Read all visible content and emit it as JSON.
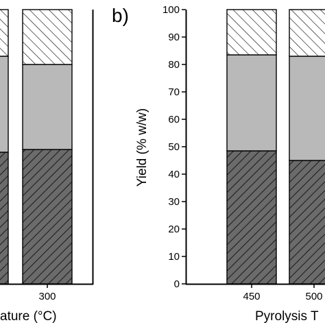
{
  "chart_data": [
    {
      "panel": "a",
      "type": "bar",
      "stacked": true,
      "title": "",
      "xlabel": "Torrefaction Temperature (°C)",
      "xlabel_visible_text": "ature (°C)",
      "ylabel": "",
      "ylim": [
        0,
        100
      ],
      "categories": [
        "",
        "300"
      ],
      "series": [
        {
          "values": [
            48,
            49
          ],
          "pattern": "dense-hatch",
          "fill": "#6b6b6b"
        },
        {
          "values": [
            35,
            31
          ],
          "pattern": "solid",
          "fill": "#b9b9b9"
        },
        {
          "values": [
            17,
            20
          ],
          "pattern": "sparse-hatch",
          "fill": "#ffffff"
        }
      ]
    },
    {
      "panel": "b",
      "type": "bar",
      "stacked": true,
      "title": "",
      "panel_label": "b)",
      "xlabel": "Pyrolysis T",
      "ylabel": "Yield (% w/w)",
      "ylim": [
        0,
        100
      ],
      "yticks": [
        "0",
        "10",
        "20",
        "30",
        "40",
        "50",
        "60",
        "70",
        "80",
        "90",
        "100"
      ],
      "categories": [
        "450",
        "500"
      ],
      "series": [
        {
          "values": [
            48.5,
            45
          ],
          "pattern": "dense-hatch",
          "fill": "#6b6b6b"
        },
        {
          "values": [
            35,
            38
          ],
          "pattern": "solid",
          "fill": "#b9b9b9"
        },
        {
          "values": [
            16.5,
            17
          ],
          "pattern": "sparse-hatch",
          "fill": "#ffffff"
        }
      ],
      "grid": false
    }
  ]
}
